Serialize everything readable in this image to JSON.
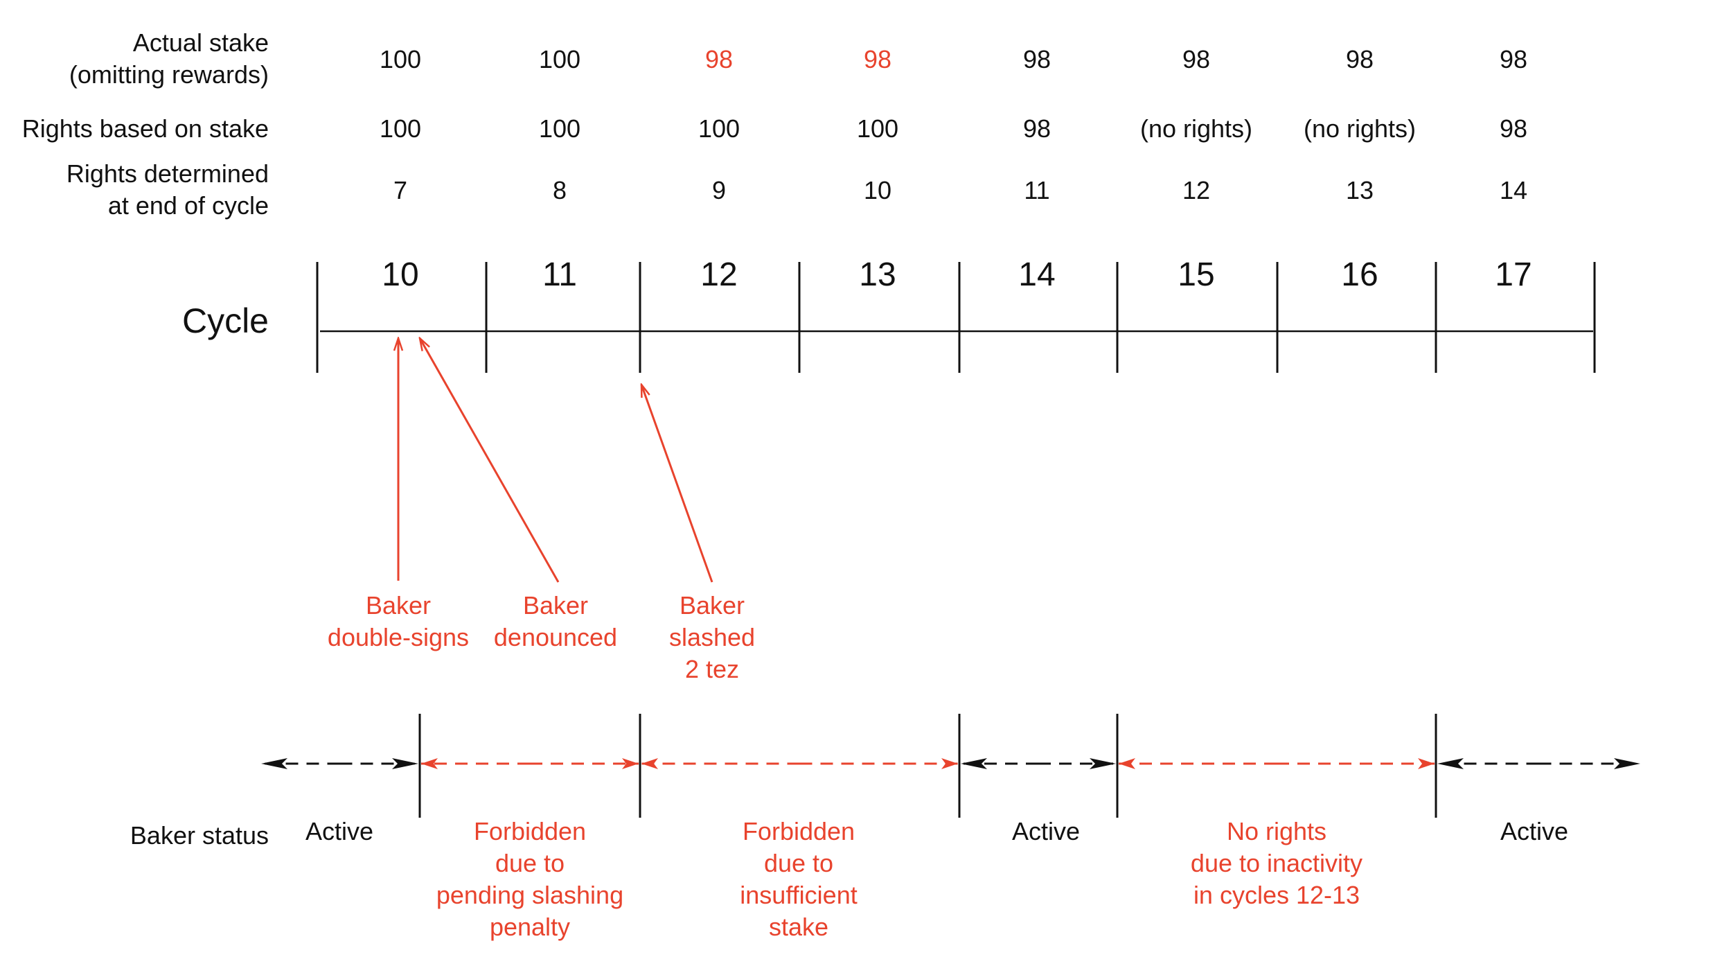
{
  "colors": {
    "ink": "#111111",
    "accent": "#e8432d"
  },
  "row_labels": {
    "actual_stake": [
      "Actual stake",
      "(omitting rewards)"
    ],
    "rights_based": [
      "Rights based on stake"
    ],
    "rights_determined": [
      "Rights determined",
      "at end of cycle"
    ]
  },
  "cycle_label": "Cycle",
  "columns": [
    {
      "cycle": "10",
      "actual": "100",
      "actual_highlight": false,
      "rights": "100",
      "determined": "7"
    },
    {
      "cycle": "11",
      "actual": "100",
      "actual_highlight": false,
      "rights": "100",
      "determined": "8"
    },
    {
      "cycle": "12",
      "actual": "98",
      "actual_highlight": true,
      "rights": "100",
      "determined": "9"
    },
    {
      "cycle": "13",
      "actual": "98",
      "actual_highlight": true,
      "rights": "100",
      "determined": "10"
    },
    {
      "cycle": "14",
      "actual": "98",
      "actual_highlight": false,
      "rights": "98",
      "determined": "11"
    },
    {
      "cycle": "15",
      "actual": "98",
      "actual_highlight": false,
      "rights": "(no rights)",
      "determined": "12"
    },
    {
      "cycle": "16",
      "actual": "98",
      "actual_highlight": false,
      "rights": "(no rights)",
      "determined": "13"
    },
    {
      "cycle": "17",
      "actual": "98",
      "actual_highlight": false,
      "rights": "98",
      "determined": "14"
    }
  ],
  "events": [
    {
      "id": "double-sign",
      "lines": [
        "Baker",
        "double-signs"
      ]
    },
    {
      "id": "denounced",
      "lines": [
        "Baker",
        "denounced"
      ]
    },
    {
      "id": "slashed",
      "lines": [
        "Baker",
        "slashed",
        "2 tez"
      ]
    }
  ],
  "status_label": "Baker status",
  "status_segments": [
    {
      "id": "active-1",
      "color": "black",
      "lines": [
        "Active"
      ]
    },
    {
      "id": "forbidden-pending",
      "color": "red",
      "lines": [
        "Forbidden",
        "due to",
        "pending slashing",
        "penalty"
      ]
    },
    {
      "id": "forbidden-stake",
      "color": "red",
      "lines": [
        "Forbidden",
        "due to",
        "insufficient",
        "stake"
      ]
    },
    {
      "id": "active-2",
      "color": "black",
      "lines": [
        "Active"
      ]
    },
    {
      "id": "no-rights",
      "color": "red",
      "lines": [
        "No rights",
        "due to inactivity",
        "in cycles 12-13"
      ]
    },
    {
      "id": "active-3",
      "color": "black",
      "lines": [
        "Active"
      ]
    }
  ]
}
